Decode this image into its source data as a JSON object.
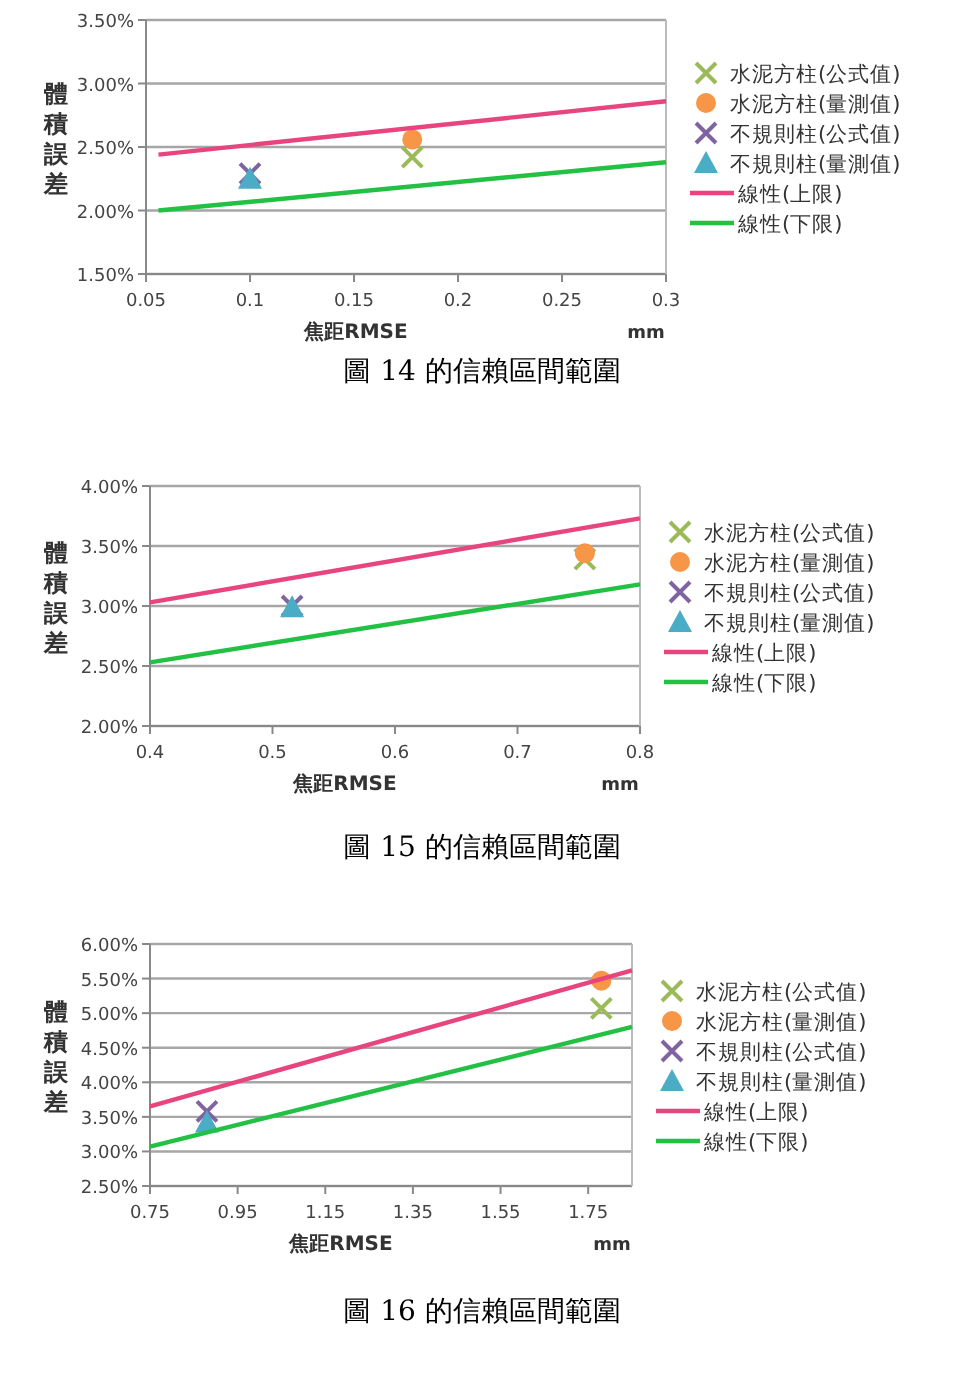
{
  "chart_data": [
    {
      "type": "scatter",
      "ylabel": "體積誤差",
      "xlabel": "焦距RMSE",
      "annotations": [
        "mm",
        "圖 14 的信賴區間範圍"
      ],
      "xlim": [
        0.05,
        0.3
      ],
      "xticks": [
        0.05,
        0.1,
        0.15,
        0.2,
        0.25,
        0.3
      ],
      "ylim": [
        1.5,
        3.5
      ],
      "yticks": [
        {
          "value": 1.5,
          "label": "1.50%"
        },
        {
          "value": 2.0,
          "label": "2.00%"
        },
        {
          "value": 2.5,
          "label": "2.50%"
        },
        {
          "value": 3.0,
          "label": "3.00%"
        },
        {
          "value": 3.5,
          "label": "3.50%"
        }
      ],
      "grid": "y",
      "legend": "right",
      "series": [
        {
          "name": "水泥方柱(公式值)",
          "marker": "cross",
          "color": "#9bbb59",
          "x": [
            0.178
          ],
          "values": [
            2.42
          ]
        },
        {
          "name": "水泥方柱(量測值)",
          "marker": "circle",
          "color": "#f79646",
          "x": [
            0.178
          ],
          "values": [
            2.56
          ]
        },
        {
          "name": "不規則柱(公式值)",
          "marker": "cross",
          "color": "#8064a2",
          "x": [
            0.1
          ],
          "values": [
            2.29
          ]
        },
        {
          "name": "不規則柱(量測值)",
          "marker": "triangle",
          "color": "#4bacc6",
          "x": [
            0.1
          ],
          "values": [
            2.25
          ]
        },
        {
          "name": "線性(上限)",
          "type": "line",
          "marker": "none",
          "color": "#e8457f",
          "x": [
            0.056,
            0.3
          ],
          "values": [
            2.44,
            2.86
          ]
        },
        {
          "name": "線性(下限)",
          "type": "line",
          "marker": "none",
          "color": "#22c043",
          "x": [
            0.056,
            0.3
          ],
          "values": [
            2.0,
            2.38
          ]
        }
      ]
    },
    {
      "type": "scatter",
      "ylabel": "體積誤差",
      "xlabel": "焦距RMSE",
      "annotations": [
        "mm",
        "圖 15 的信賴區間範圍"
      ],
      "xlim": [
        0.4,
        0.8
      ],
      "xticks": [
        0.4,
        0.5,
        0.6,
        0.7,
        0.8
      ],
      "ylim": [
        2.0,
        4.0
      ],
      "yticks": [
        {
          "value": 2.0,
          "label": "2.00%"
        },
        {
          "value": 2.5,
          "label": "2.50%"
        },
        {
          "value": 3.0,
          "label": "3.00%"
        },
        {
          "value": 3.5,
          "label": "3.50%"
        },
        {
          "value": 4.0,
          "label": "4.00%"
        }
      ],
      "grid": "y",
      "legend": "right",
      "series": [
        {
          "name": "水泥方柱(公式值)",
          "marker": "cross",
          "color": "#9bbb59",
          "x": [
            0.755
          ],
          "values": [
            3.39
          ]
        },
        {
          "name": "水泥方柱(量測值)",
          "marker": "circle",
          "color": "#f79646",
          "x": [
            0.755
          ],
          "values": [
            3.44
          ]
        },
        {
          "name": "不規則柱(公式值)",
          "marker": "cross",
          "color": "#8064a2",
          "x": [
            0.516
          ],
          "values": [
            3.0
          ]
        },
        {
          "name": "不規則柱(量測值)",
          "marker": "triangle",
          "color": "#4bacc6",
          "x": [
            0.516
          ],
          "values": [
            2.99
          ]
        },
        {
          "name": "線性(上限)",
          "type": "line",
          "marker": "none",
          "color": "#e8457f",
          "x": [
            0.4,
            0.8
          ],
          "values": [
            3.03,
            3.73
          ]
        },
        {
          "name": "線性(下限)",
          "type": "line",
          "marker": "none",
          "color": "#22c043",
          "x": [
            0.4,
            0.8
          ],
          "values": [
            2.53,
            3.18
          ]
        }
      ]
    },
    {
      "type": "scatter",
      "ylabel": "體積誤差",
      "xlabel": "焦距RMSE",
      "annotations": [
        "mm",
        "圖 16 的信賴區間範圍"
      ],
      "xlim": [
        0.75,
        1.85
      ],
      "xticks": [
        0.75,
        0.95,
        1.15,
        1.35,
        1.55,
        1.75
      ],
      "ylim": [
        2.5,
        6.0
      ],
      "yticks": [
        {
          "value": 2.5,
          "label": "2.50%"
        },
        {
          "value": 3.0,
          "label": "3.00%"
        },
        {
          "value": 3.5,
          "label": "3.50%"
        },
        {
          "value": 4.0,
          "label": "4.00%"
        },
        {
          "value": 4.5,
          "label": "4.50%"
        },
        {
          "value": 5.0,
          "label": "5.00%"
        },
        {
          "value": 5.5,
          "label": "5.50%"
        },
        {
          "value": 6.0,
          "label": "6.00%"
        }
      ],
      "grid": "y",
      "legend": "right",
      "series": [
        {
          "name": "水泥方柱(公式值)",
          "marker": "cross",
          "color": "#9bbb59",
          "x": [
            1.78
          ],
          "values": [
            5.07
          ]
        },
        {
          "name": "水泥方柱(量測值)",
          "marker": "circle",
          "color": "#f79646",
          "x": [
            1.78
          ],
          "values": [
            5.47
          ]
        },
        {
          "name": "不規則柱(公式值)",
          "marker": "cross",
          "color": "#8064a2",
          "x": [
            0.88
          ],
          "values": [
            3.58
          ]
        },
        {
          "name": "不規則柱(量測值)",
          "marker": "triangle",
          "color": "#4bacc6",
          "x": [
            0.88
          ],
          "values": [
            3.42
          ]
        },
        {
          "name": "線性(上限)",
          "type": "line",
          "marker": "none",
          "color": "#e8457f",
          "x": [
            0.75,
            1.85
          ],
          "values": [
            3.65,
            5.62
          ]
        },
        {
          "name": "線性(下限)",
          "type": "line",
          "marker": "none",
          "color": "#22c043",
          "x": [
            0.75,
            1.85
          ],
          "values": [
            3.07,
            4.8
          ]
        }
      ]
    }
  ]
}
